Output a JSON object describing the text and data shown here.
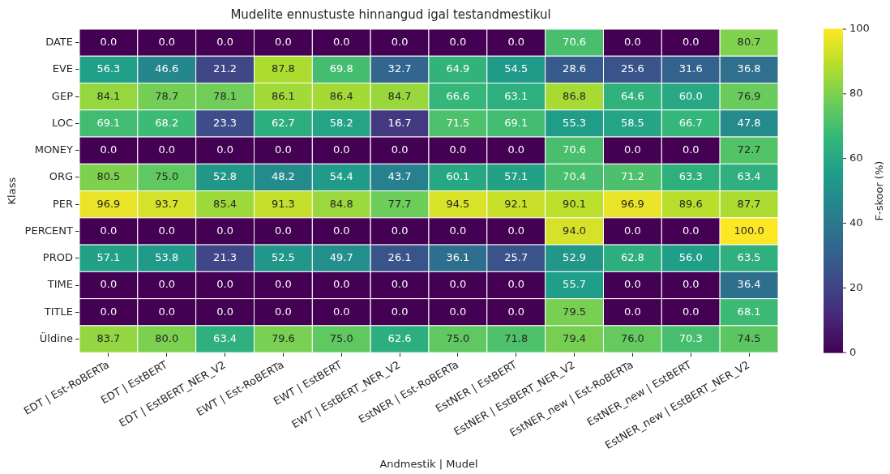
{
  "chart_data": {
    "type": "heatmap",
    "title": "Mudelite ennustuste hinnangud igal testandmestikul",
    "xlabel": "Andmestik | Mudel",
    "ylabel": "Klass",
    "clabel": "F-skoor (%)",
    "categories": [
      "EDT | Est-RoBERTa",
      "EDT | EstBERT",
      "EDT | EstBERT_NER_V2",
      "EWT | Est-RoBERTa",
      "EWT | EstBERT",
      "EWT | EstBERT_NER_V2",
      "EstNER | Est-RoBERTa",
      "EstNER | EstBERT",
      "EstNER | EstBERT_NER_V2",
      "EstNER_new | Est-RoBERTa",
      "EstNER_new | EstBERT",
      "EstNER_new | EstBERT_NER_V2"
    ],
    "y_categories": [
      "DATE",
      "EVE",
      "GEP",
      "LOC",
      "MONEY",
      "ORG",
      "PER",
      "PERCENT",
      "PROD",
      "TIME",
      "TITLE",
      "Üldine"
    ],
    "cells": [
      [
        0,
        0,
        0,
        0,
        0,
        0,
        0,
        0,
        70.6,
        0,
        0,
        80.7
      ],
      [
        56.3,
        46.6,
        21.2,
        87.8,
        69.8,
        32.7,
        64.9,
        54.5,
        28.6,
        25.6,
        31.6,
        36.8
      ],
      [
        84.1,
        78.7,
        78.1,
        86.1,
        86.4,
        84.7,
        66.6,
        63.1,
        86.8,
        64.6,
        60.0,
        76.9
      ],
      [
        69.1,
        68.2,
        23.3,
        62.7,
        58.2,
        16.7,
        71.5,
        69.1,
        55.3,
        58.5,
        66.7,
        47.8
      ],
      [
        0,
        0,
        0,
        0,
        0,
        0,
        0,
        0,
        70.6,
        0,
        0,
        72.7
      ],
      [
        80.5,
        75.0,
        52.8,
        48.2,
        54.4,
        43.7,
        60.1,
        57.1,
        70.4,
        71.2,
        63.3,
        63.4
      ],
      [
        96.9,
        93.7,
        85.4,
        91.3,
        84.8,
        77.7,
        94.5,
        92.1,
        90.1,
        96.9,
        89.6,
        87.7
      ],
      [
        0,
        0,
        0,
        0,
        0,
        0,
        0,
        0,
        94.0,
        0,
        0,
        100.0
      ],
      [
        57.1,
        53.8,
        21.3,
        52.5,
        49.7,
        26.1,
        36.1,
        25.7,
        52.9,
        62.8,
        56.0,
        63.5
      ],
      [
        0,
        0,
        0,
        0,
        0,
        0,
        0,
        0,
        55.7,
        0,
        0,
        36.4
      ],
      [
        0,
        0,
        0,
        0,
        0,
        0,
        0,
        0,
        79.5,
        0,
        0,
        68.1
      ],
      [
        83.7,
        80.0,
        63.4,
        79.6,
        75.0,
        62.6,
        75.0,
        71.8,
        79.4,
        76.0,
        70.3,
        74.5
      ]
    ],
    "cell_labels": [
      [
        "0.0",
        "0.0",
        "0.0",
        "0.0",
        "0.0",
        "0.0",
        "0.0",
        "0.0",
        "70.6",
        "0.0",
        "0.0",
        "80.7"
      ],
      [
        "56.3",
        "46.6",
        "21.2",
        "87.8",
        "69.8",
        "32.7",
        "64.9",
        "54.5",
        "28.6",
        "25.6",
        "31.6",
        "36.8"
      ],
      [
        "84.1",
        "78.7",
        "78.1",
        "86.1",
        "86.4",
        "84.7",
        "66.6",
        "63.1",
        "86.8",
        "64.6",
        "60.0",
        "76.9"
      ],
      [
        "69.1",
        "68.2",
        "23.3",
        "62.7",
        "58.2",
        "16.7",
        "71.5",
        "69.1",
        "55.3",
        "58.5",
        "66.7",
        "47.8"
      ],
      [
        "0.0",
        "0.0",
        "0.0",
        "0.0",
        "0.0",
        "0.0",
        "0.0",
        "0.0",
        "70.6",
        "0.0",
        "0.0",
        "72.7"
      ],
      [
        "80.5",
        "75.0",
        "52.8",
        "48.2",
        "54.4",
        "43.7",
        "60.1",
        "57.1",
        "70.4",
        "71.2",
        "63.3",
        "63.4"
      ],
      [
        "96.9",
        "93.7",
        "85.4",
        "91.3",
        "84.8",
        "77.7",
        "94.5",
        "92.1",
        "90.1",
        "96.9",
        "89.6",
        "87.7"
      ],
      [
        "0.0",
        "0.0",
        "0.0",
        "0.0",
        "0.0",
        "0.0",
        "0.0",
        "0.0",
        "94.0",
        "0.0",
        "0.0",
        "100.0"
      ],
      [
        "57.1",
        "53.8",
        "21.3",
        "52.5",
        "49.7",
        "26.1",
        "36.1",
        "25.7",
        "52.9",
        "62.8",
        "56.0",
        "63.5"
      ],
      [
        "0.0",
        "0.0",
        "0.0",
        "0.0",
        "0.0",
        "0.0",
        "0.0",
        "0.0",
        "55.7",
        "0.0",
        "0.0",
        "36.4"
      ],
      [
        "0.0",
        "0.0",
        "0.0",
        "0.0",
        "0.0",
        "0.0",
        "0.0",
        "0.0",
        "79.5",
        "0.0",
        "0.0",
        "68.1"
      ],
      [
        "83.7",
        "80.0",
        "63.4",
        "79.6",
        "75.0",
        "62.6",
        "75.0",
        "71.8",
        "79.4",
        "76.0",
        "70.3",
        "74.5"
      ]
    ],
    "clim": [
      0,
      100
    ],
    "cticks": [
      0,
      20,
      40,
      60,
      80,
      100
    ]
  }
}
